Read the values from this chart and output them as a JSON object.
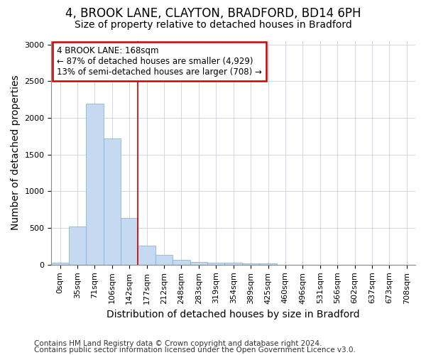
{
  "title_line1": "4, BROOK LANE, CLAYTON, BRADFORD, BD14 6PH",
  "title_line2": "Size of property relative to detached houses in Bradford",
  "xlabel": "Distribution of detached houses by size in Bradford",
  "ylabel": "Number of detached properties",
  "footer_line1": "Contains HM Land Registry data © Crown copyright and database right 2024.",
  "footer_line2": "Contains public sector information licensed under the Open Government Licence v3.0.",
  "annotation_line1": "4 BROOK LANE: 168sqm",
  "annotation_line2": "← 87% of detached houses are smaller (4,929)",
  "annotation_line3": "13% of semi-detached houses are larger (708) →",
  "bar_labels": [
    "0sqm",
    "35sqm",
    "71sqm",
    "106sqm",
    "142sqm",
    "177sqm",
    "212sqm",
    "248sqm",
    "283sqm",
    "319sqm",
    "354sqm",
    "389sqm",
    "425sqm",
    "460sqm",
    "496sqm",
    "531sqm",
    "566sqm",
    "602sqm",
    "637sqm",
    "673sqm",
    "708sqm"
  ],
  "bar_values": [
    30,
    520,
    2190,
    1720,
    635,
    260,
    130,
    70,
    40,
    30,
    25,
    20,
    15,
    0,
    0,
    0,
    0,
    0,
    0,
    0,
    0
  ],
  "bar_color": "#c5d9f0",
  "bar_edge_color": "#7aadd4",
  "background_color": "#ffffff",
  "plot_bg_color": "#ffffff",
  "grid_color": "#c8d0e0",
  "red_line_color": "#cc0000",
  "ylim": [
    0,
    3050
  ],
  "yticks": [
    0,
    500,
    1000,
    1500,
    2000,
    2500,
    3000
  ],
  "annotation_box_color": "#ffffff",
  "annotation_box_edge": "#cc0000",
  "title_fontsize": 12,
  "subtitle_fontsize": 10,
  "axis_label_fontsize": 10,
  "tick_fontsize": 8,
  "footer_fontsize": 7.5
}
